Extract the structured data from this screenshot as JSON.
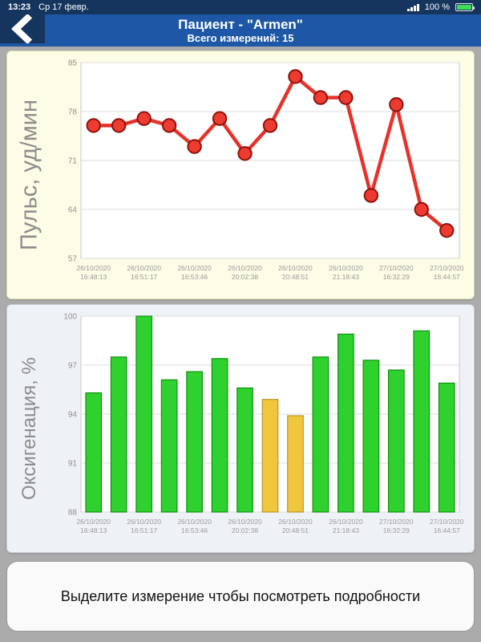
{
  "status_bar": {
    "time": "13:23",
    "date": "Ср 17 февр.",
    "battery_percent": "100 %"
  },
  "header": {
    "title": "Пациент - \"Armen\"",
    "subtitle": "Всего измерений: 15"
  },
  "footer": {
    "message": "Выделите измерение чтобы посмотреть подробности"
  },
  "chart_data": [
    {
      "type": "line",
      "ylabel": "Пульс, уд/мин",
      "ylim": [
        57,
        85
      ],
      "yticks": [
        57,
        64,
        71,
        78,
        85
      ],
      "label_every": 2,
      "x_labels": [
        [
          "26/10/2020",
          "16:48:13"
        ],
        [
          "26/10/2020",
          "16:51:17"
        ],
        [
          "26/10/2020",
          "16:53:46"
        ],
        [
          "26/10/2020",
          "20:02:38"
        ],
        [
          "26/10/2020",
          "20:48:51"
        ],
        [
          "26/10/2020",
          "21:18:43"
        ],
        [
          "27/10/2020",
          "16:32:29"
        ],
        [
          "27/10/2020",
          "16:44:57"
        ]
      ],
      "values": [
        76,
        76,
        77,
        76,
        73,
        77,
        72,
        76,
        83,
        80,
        80,
        66,
        79,
        64,
        61
      ],
      "colors": {
        "line": "#e6322b",
        "marker_fill": "#ed3b31",
        "marker_stroke": "#8e120b"
      },
      "grid": true
    },
    {
      "type": "bar",
      "ylabel": "Оксигенация, %",
      "ylim": [
        88,
        100
      ],
      "yticks": [
        88,
        91,
        94,
        97,
        100
      ],
      "label_every": 2,
      "x_labels": [
        [
          "26/10/2020",
          "16:48:13"
        ],
        [
          "26/10/2020",
          "16:51:17"
        ],
        [
          "26/10/2020",
          "16:53:46"
        ],
        [
          "26/10/2020",
          "20:02:38"
        ],
        [
          "26/10/2020",
          "20:48:51"
        ],
        [
          "26/10/2020",
          "21:18:43"
        ],
        [
          "27/10/2020",
          "16:32:29"
        ],
        [
          "27/10/2020",
          "16:44:57"
        ]
      ],
      "values": [
        95.3,
        97.5,
        100,
        96.1,
        96.6,
        97.4,
        95.6,
        94.9,
        93.9,
        97.5,
        98.9,
        97.3,
        96.7,
        99.1,
        95.9
      ],
      "highlight_indices": [
        7,
        8
      ],
      "colors": {
        "bar": "#2ed12e",
        "bar_stroke": "#109010",
        "highlight": "#f0c63c",
        "highlight_stroke": "#bc9426"
      },
      "grid": true
    }
  ]
}
